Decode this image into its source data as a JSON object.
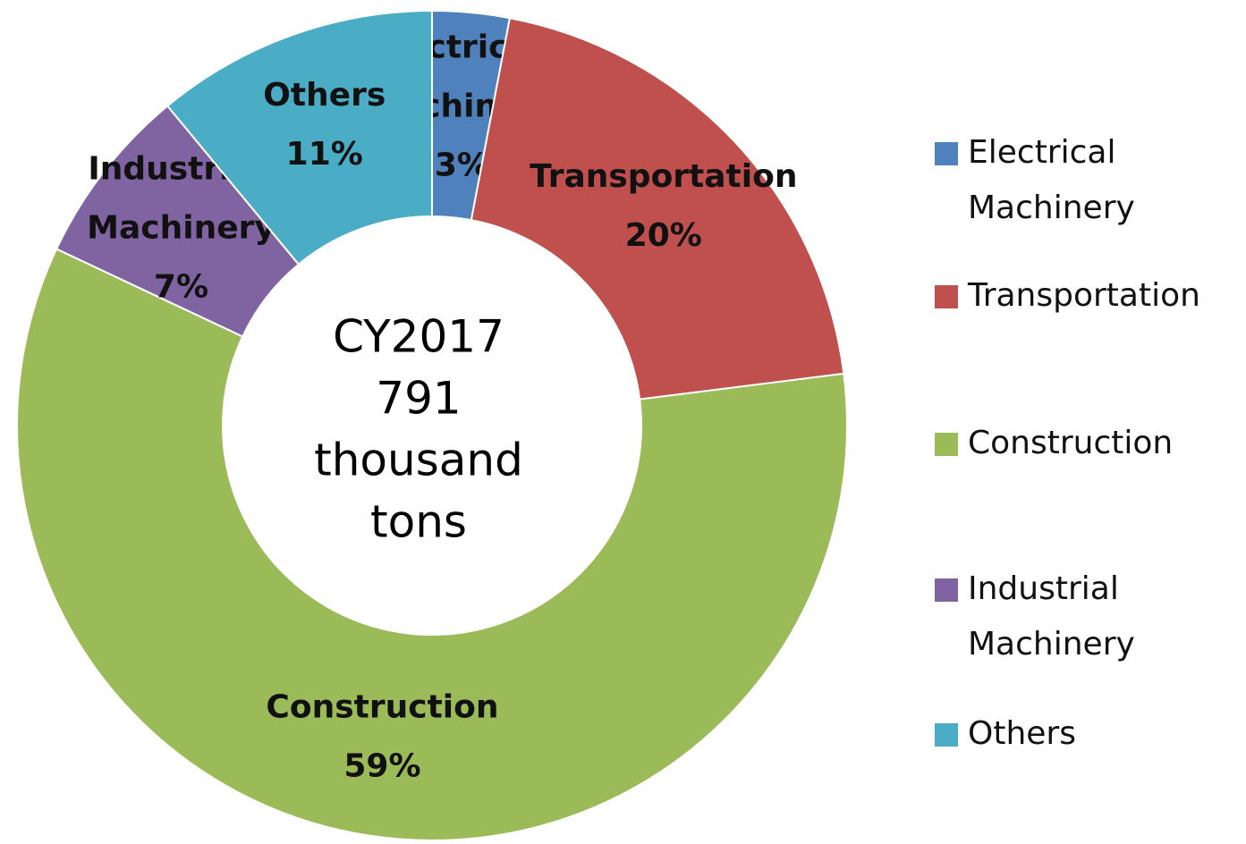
{
  "chart_data": {
    "type": "donut",
    "categories": [
      "Electrical Machinery",
      "Transportation",
      "Construction",
      "Industrial Machinery",
      "Others"
    ],
    "values": [
      3,
      20,
      59,
      7,
      11
    ],
    "value_labels": [
      "3%",
      "20%",
      "59%",
      "7%",
      "11%"
    ],
    "colors": [
      "#4f81bd",
      "#c0504d",
      "#9bbb59",
      "#8064a2",
      "#4bacc6"
    ],
    "center_text": [
      "CY2017",
      "791",
      "thousand",
      "tons"
    ],
    "legend": "right"
  }
}
